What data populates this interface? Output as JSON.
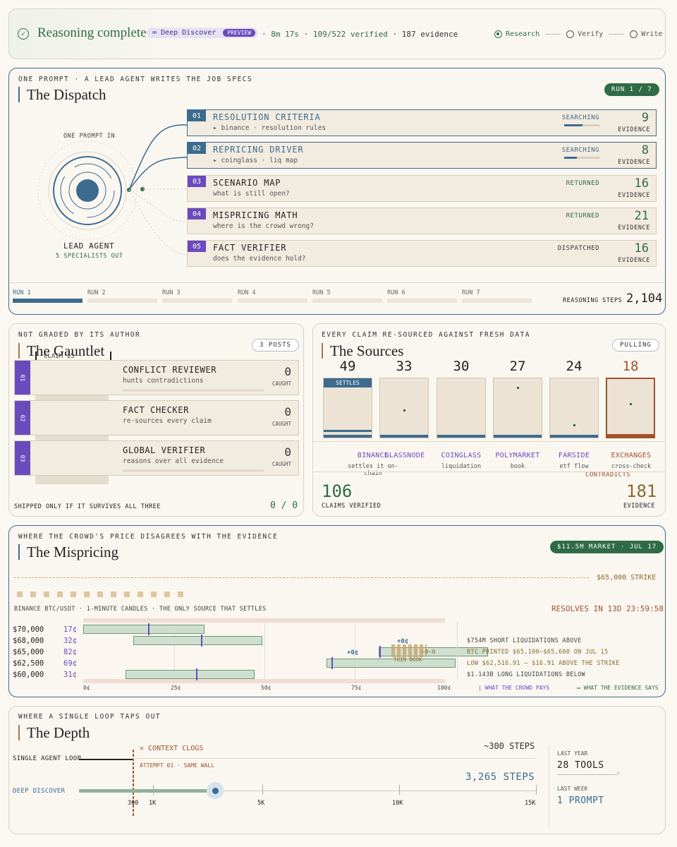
{
  "header": {
    "title": "Reasoning complete",
    "mode": "∞ Deep Discover",
    "badge": "PREVIEW",
    "time": "8m 17s",
    "verified": "109/522 verified",
    "evidence": "187 evidence",
    "steps": [
      "Research",
      "Verify",
      "Write"
    ]
  },
  "dispatch": {
    "kicker": "ONE PROMPT · A LEAD AGENT WRITES THE JOB SPECS",
    "title": "The Dispatch",
    "run_pill": "RUN 1 / 7",
    "prompt_in": "ONE PROMPT IN",
    "lead": "LEAD AGENT",
    "lead_sub": "5 SPECIALISTS OUT",
    "cards": [
      {
        "num": "01",
        "name": "RESOLUTION CRITERIA",
        "sub": "▸ binance · resolution rules",
        "status": "SEARCHING",
        "evidence": "9",
        "ev_label": "EVIDENCE"
      },
      {
        "num": "02",
        "name": "REPRICING DRIVER",
        "sub": "▸ coinglass · liq map",
        "status": "SEARCHING",
        "evidence": "8",
        "ev_label": "EVIDENCE"
      },
      {
        "num": "03",
        "name": "SCENARIO MAP",
        "sub": "what is still open?",
        "status": "RETURNED",
        "evidence": "16",
        "ev_label": "EVIDENCE"
      },
      {
        "num": "04",
        "name": "MISPRICING MATH",
        "sub": "where is the crowd wrong?",
        "status": "RETURNED",
        "evidence": "21",
        "ev_label": "EVIDENCE"
      },
      {
        "num": "05",
        "name": "FACT VERIFIER",
        "sub": "does the evidence hold?",
        "status": "DISPATCHED",
        "evidence": "16",
        "ev_label": "EVIDENCE"
      }
    ],
    "runs": [
      "RUN 1",
      "RUN 2",
      "RUN 3",
      "RUN 4",
      "RUN 5",
      "RUN 6",
      "RUN 7"
    ],
    "steps_label": "REASONING STEPS",
    "steps_value": "2,104"
  },
  "gauntlet": {
    "kicker": "NOT GRADED BY ITS AUTHOR",
    "title": "The Gauntlet",
    "posts": "3 POSTS",
    "claim": "CLAIM 15",
    "cards": [
      {
        "num": "01",
        "name": "CONFLICT REVIEWER",
        "sub": "hunts contradictions",
        "value": "0",
        "label": "CAUGHT"
      },
      {
        "num": "02",
        "name": "FACT CHECKER",
        "sub": "re-sources every claim",
        "value": "0",
        "label": "CAUGHT"
      },
      {
        "num": "03",
        "name": "GLOBAL VERIFIER",
        "sub": "reasons over all evidence",
        "value": "0",
        "label": "CAUGHT"
      }
    ],
    "footer": "SHIPPED ONLY IF IT SURVIVES ALL THREE",
    "score": "0 / 0"
  },
  "sources": {
    "kicker": "EVERY CLAIM RE-SOURCED AGAINST FRESH DATA",
    "title": "The Sources",
    "status": "PULLING",
    "settles": "SETTLES",
    "contradicts": "CONTRADICTS",
    "items": [
      {
        "count": "49",
        "name": "BINANCE",
        "sub": "settles it on-chain"
      },
      {
        "count": "33",
        "name": "GLASSNODE",
        "sub": ""
      },
      {
        "count": "30",
        "name": "COINGLASS",
        "sub": "liquidation"
      },
      {
        "count": "27",
        "name": "POLYMARKET",
        "sub": "book"
      },
      {
        "count": "24",
        "name": "FARSIDE",
        "sub": "etf flow"
      },
      {
        "count": "18",
        "name": "EXCHANGES",
        "sub": "cross-check"
      }
    ],
    "claims_value": "106",
    "claims_label": "CLAIMS VERIFIED",
    "evidence_value": "181",
    "evidence_label": "EVIDENCE"
  },
  "mispricing": {
    "kicker": "WHERE THE CROWD'S PRICE DISAGREES WITH THE EVIDENCE",
    "title": "The Mispricing",
    "market": "$11.5M MARKET · JUL 17",
    "strike": "$65,000 STRIKE",
    "source": "BINANCE BTC/USDT · 1-MINUTE CANDLES · THE ONLY SOURCE THAT SETTLES",
    "resolves": "RESOLVES IN 13D 23:59:58",
    "rows": [
      {
        "price": "$70,000",
        "crowd": "17¢"
      },
      {
        "price": "$68,000",
        "crowd": "32¢"
      },
      {
        "price": "$65,000",
        "crowd": "82¢"
      },
      {
        "price": "$62,500",
        "crowd": "69¢"
      },
      {
        "price": "$60,000",
        "crowd": "31¢"
      }
    ],
    "deltas": [
      "+0¢",
      "+0¢",
      "−0−0"
    ],
    "thin": "THIN BOOK",
    "axis": [
      "0¢",
      "25¢",
      "50¢",
      "75¢",
      "100¢"
    ],
    "notes": [
      "$754M SHORT LIQUIDATIONS ABOVE",
      "BTC PRINTED $65,100–$65,600 ON JUL 15",
      "LOW $62,516.91 — $16.91 ABOVE THE STRIKE",
      "$1.143B LONG LIQUIDATIONS BELOW"
    ],
    "legend_crowd": "WHAT THE CROWD PAYS",
    "legend_evidence": "WHAT THE EVIDENCE SAYS"
  },
  "depth": {
    "kicker": "WHERE A SINGLE LOOP TAPS OUT",
    "title": "The Depth",
    "single": "SINGLE AGENT LOOP",
    "clogs": "✕ CONTEXT CLOGS",
    "attempt": "ATTEMPT 01 · SAME WALL",
    "single_steps": "~300 STEPS",
    "deep": "DEEP DISCOVER",
    "deep_steps": "3,265 STEPS",
    "ticks": [
      "300",
      "1K",
      "5K",
      "10K",
      "15K"
    ],
    "last_year": "LAST YEAR",
    "tools": "28 TOOLS",
    "last_week": "LAST WEEK",
    "prompt": "1 PROMPT"
  },
  "colors": {
    "blue": "#3d6b8f",
    "green": "#2f6b45",
    "purple": "#6a4bbd",
    "brown": "#a0522d"
  }
}
